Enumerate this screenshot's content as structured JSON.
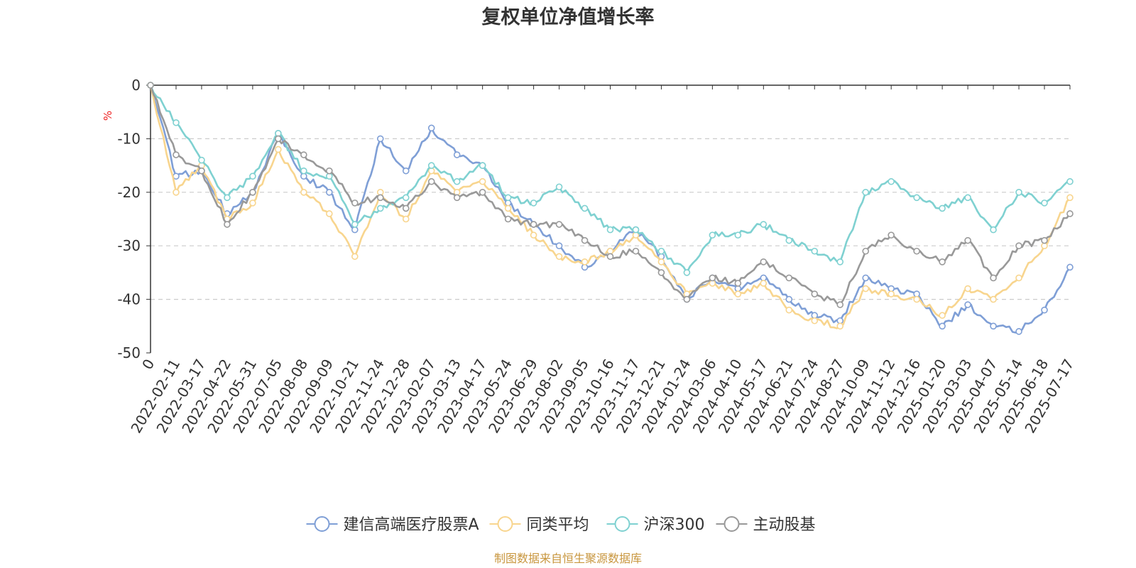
{
  "chart_data": {
    "type": "line",
    "title": "复权单位净值增长率",
    "ylabel": "%",
    "ylim": [
      -50,
      0
    ],
    "yticks": [
      0,
      -10,
      -20,
      -30,
      -40,
      -50
    ],
    "grid": true,
    "legend_position": "bottom",
    "x_labels": [
      "0",
      "2022-02-11",
      "2022-03-17",
      "2022-04-22",
      "2022-05-31",
      "2022-07-05",
      "2022-08-08",
      "2022-09-09",
      "2022-10-21",
      "2022-11-24",
      "2022-12-28",
      "2023-02-07",
      "2023-03-13",
      "2023-04-17",
      "2023-05-24",
      "2023-06-29",
      "2023-08-02",
      "2023-09-05",
      "2023-10-16",
      "2023-11-17",
      "2023-12-21",
      "2024-01-24",
      "2024-03-06",
      "2024-04-10",
      "2024-05-17",
      "2024-06-21",
      "2024-07-24",
      "2024-08-27",
      "2024-10-09",
      "2024-11-12",
      "2024-12-16",
      "2025-01-20",
      "2025-03-03",
      "2025-04-07",
      "2025-05-14",
      "2025-06-18",
      "2025-07-17"
    ],
    "series": [
      {
        "name": "建信高端医疗股票A",
        "color": "#7f9fd6",
        "values": [
          0,
          -17,
          -16,
          -24,
          -20,
          -9,
          -17,
          -20,
          -27,
          -10,
          -16,
          -8,
          -13,
          -15,
          -22,
          -26,
          -30,
          -34,
          -31,
          -27,
          -32,
          -40,
          -36,
          -38,
          -36,
          -40,
          -43,
          -44,
          -36,
          -38,
          -39,
          -45,
          -41,
          -45,
          -46,
          -42,
          -34
        ]
      },
      {
        "name": "同类平均",
        "color": "#f8d58e",
        "values": [
          0,
          -20,
          -15,
          -25,
          -22,
          -12,
          -20,
          -24,
          -32,
          -20,
          -25,
          -16,
          -20,
          -18,
          -23,
          -28,
          -32,
          -33,
          -31,
          -28,
          -33,
          -39,
          -37,
          -39,
          -37,
          -42,
          -44,
          -45,
          -38,
          -39,
          -40,
          -43,
          -38,
          -40,
          -36,
          -30,
          -21
        ]
      },
      {
        "name": "沪深300",
        "color": "#7fd1d1",
        "values": [
          0,
          -7,
          -14,
          -21,
          -17,
          -9,
          -16,
          -17,
          -26,
          -23,
          -21,
          -15,
          -18,
          -15,
          -21,
          -22,
          -19,
          -23,
          -27,
          -27,
          -31,
          -35,
          -28,
          -28,
          -26,
          -29,
          -31,
          -33,
          -20,
          -18,
          -21,
          -23,
          -21,
          -27,
          -20,
          -22,
          -18
        ]
      },
      {
        "name": "主动股基",
        "color": "#999999",
        "values": [
          0,
          -13,
          -16,
          -26,
          -20,
          -10,
          -13,
          -16,
          -22,
          -21,
          -23,
          -18,
          -21,
          -20,
          -25,
          -26,
          -26,
          -29,
          -32,
          -31,
          -35,
          -40,
          -36,
          -37,
          -33,
          -36,
          -39,
          -41,
          -31,
          -28,
          -31,
          -33,
          -29,
          -36,
          -30,
          -29,
          -24
        ]
      }
    ]
  },
  "source_note": "制图数据来自恒生聚源数据库"
}
